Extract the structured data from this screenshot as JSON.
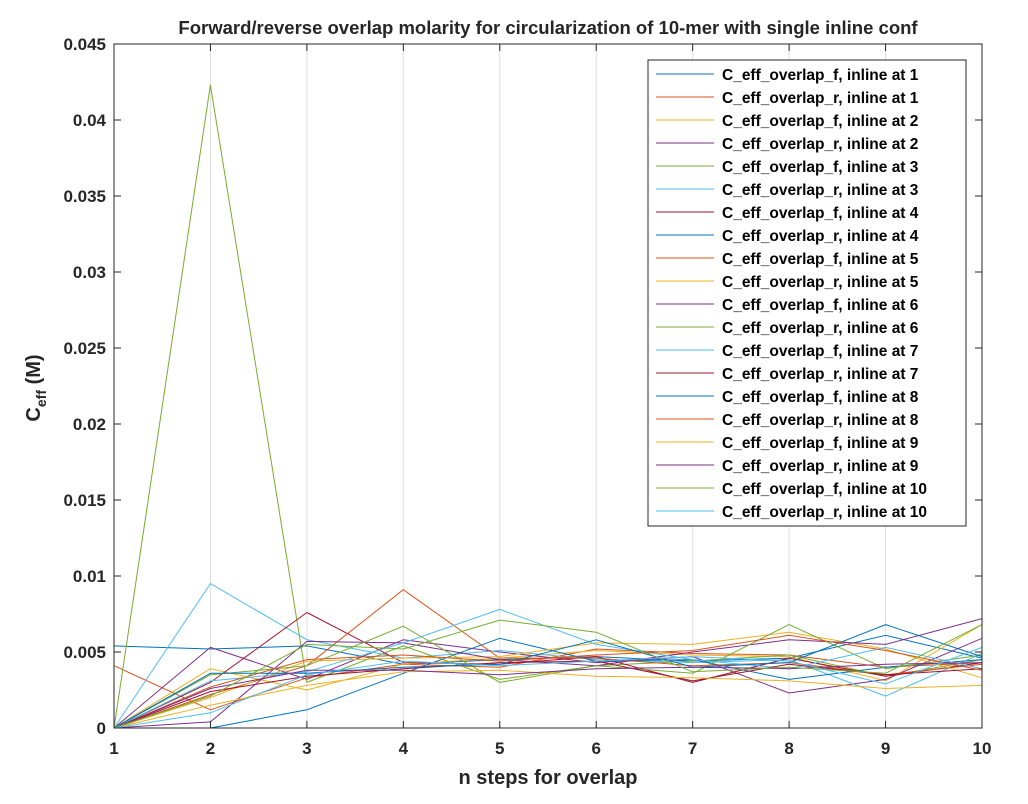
{
  "chart_data": {
    "type": "line",
    "title": "Forward/reverse overlap molarity for circularization of 10-mer with single inline conf",
    "xlabel": "n steps for overlap",
    "ylabel_main": "C",
    "ylabel_sub": "eff",
    "ylabel_unit": " (M)",
    "xlim": [
      1,
      10
    ],
    "ylim": [
      0,
      0.045
    ],
    "xticks": [
      1,
      2,
      3,
      4,
      5,
      6,
      7,
      8,
      9,
      10
    ],
    "xtick_labels": [
      "1",
      "2",
      "3",
      "4",
      "5",
      "6",
      "7",
      "8",
      "9",
      "10"
    ],
    "yticks": [
      0,
      0.005,
      0.01,
      0.015,
      0.02,
      0.025,
      0.03,
      0.035,
      0.04,
      0.045
    ],
    "ytick_labels": [
      "0",
      "0.005",
      "0.01",
      "0.015",
      "0.02",
      "0.025",
      "0.03",
      "0.035",
      "0.04",
      "0.045"
    ],
    "grid": "vertical",
    "legend_position": "top-right",
    "x": [
      1,
      2,
      3,
      4,
      5,
      6,
      7,
      8,
      9,
      10
    ],
    "series": [
      {
        "name": "C_eff_overlap_f, inline at 1",
        "color": "#0072BD",
        "values": [
          0.0054,
          0.0052,
          0.0054,
          0.0042,
          0.0045,
          0.0047,
          0.0044,
          0.0046,
          0.0061,
          0.0046
        ]
      },
      {
        "name": "C_eff_overlap_r, inline at 1",
        "color": "#D95319",
        "values": [
          0.0041,
          0.0012,
          0.0033,
          0.0042,
          0.004,
          0.0052,
          0.0049,
          0.0048,
          0.004,
          0.0043
        ]
      },
      {
        "name": "C_eff_overlap_f, inline at 2",
        "color": "#EDB120",
        "values": [
          0.0,
          0.0039,
          0.0025,
          0.0042,
          0.0046,
          0.0051,
          0.0048,
          0.0047,
          0.0031,
          0.0068
        ]
      },
      {
        "name": "C_eff_overlap_r, inline at 2",
        "color": "#7E2F8E",
        "values": [
          0.0,
          0.0053,
          0.0032,
          0.0058,
          0.005,
          0.0043,
          0.0047,
          0.0023,
          0.0032,
          0.0059
        ]
      },
      {
        "name": "C_eff_overlap_f, inline at 3",
        "color": "#77AC30",
        "values": [
          0.0,
          0.0423,
          0.003,
          0.0054,
          0.0032,
          0.0041,
          0.0044,
          0.0048,
          0.0034,
          0.0045
        ]
      },
      {
        "name": "C_eff_overlap_r, inline at 3",
        "color": "#4DBEEE",
        "values": [
          0.0,
          0.0095,
          0.0058,
          0.0046,
          0.0051,
          0.0045,
          0.0043,
          0.0045,
          0.0021,
          0.0049
        ]
      },
      {
        "name": "C_eff_overlap_f, inline at 4",
        "color": "#A2142F",
        "values": [
          0.0,
          0.003,
          0.0076,
          0.0043,
          0.0042,
          0.0047,
          0.003,
          0.0046,
          0.0034,
          0.0043
        ]
      },
      {
        "name": "C_eff_overlap_r, inline at 4",
        "color": "#0072BD",
        "values": [
          0.0,
          0.0,
          0.0012,
          0.0036,
          0.0059,
          0.0044,
          0.0045,
          0.0032,
          0.004,
          0.0045
        ]
      },
      {
        "name": "C_eff_overlap_f, inline at 5",
        "color": "#D95319",
        "values": [
          0.0,
          0.0022,
          0.0041,
          0.0091,
          0.0046,
          0.0046,
          0.0041,
          0.0043,
          0.0035,
          0.0042
        ]
      },
      {
        "name": "C_eff_overlap_r, inline at 5",
        "color": "#EDB120",
        "values": [
          0.0,
          0.002,
          0.0044,
          0.0046,
          0.0047,
          0.0056,
          0.0055,
          0.0063,
          0.0052,
          0.0033
        ]
      },
      {
        "name": "C_eff_overlap_f, inline at 6",
        "color": "#7E2F8E",
        "values": [
          0.0,
          0.0004,
          0.0057,
          0.0056,
          0.0045,
          0.0041,
          0.005,
          0.0058,
          0.0055,
          0.0072
        ]
      },
      {
        "name": "C_eff_overlap_r, inline at 6",
        "color": "#77AC30",
        "values": [
          0.0,
          0.0035,
          0.0041,
          0.0067,
          0.003,
          0.0041,
          0.0036,
          0.0068,
          0.0039,
          0.0048
        ]
      },
      {
        "name": "C_eff_overlap_f, inline at 7",
        "color": "#4DBEEE",
        "values": [
          0.0,
          0.0031,
          0.0037,
          0.0056,
          0.0078,
          0.0055,
          0.0045,
          0.0039,
          0.0053,
          0.0039
        ]
      },
      {
        "name": "C_eff_overlap_r, inline at 7",
        "color": "#A2142F",
        "values": [
          0.0,
          0.0024,
          0.0034,
          0.0039,
          0.0043,
          0.0044,
          0.0031,
          0.0042,
          0.0035,
          0.0039
        ]
      },
      {
        "name": "C_eff_overlap_f, inline at 8",
        "color": "#0072BD",
        "values": [
          0.0,
          0.0036,
          0.0036,
          0.004,
          0.0042,
          0.0058,
          0.004,
          0.0043,
          0.0068,
          0.0047
        ]
      },
      {
        "name": "C_eff_overlap_r, inline at 8",
        "color": "#D95319",
        "values": [
          0.0,
          0.0027,
          0.0045,
          0.0048,
          0.0044,
          0.0048,
          0.0051,
          0.0061,
          0.0051,
          0.0038
        ]
      },
      {
        "name": "C_eff_overlap_f, inline at 9",
        "color": "#EDB120",
        "values": [
          0.0,
          0.0015,
          0.0028,
          0.0037,
          0.0038,
          0.0034,
          0.0033,
          0.0031,
          0.0026,
          0.0028
        ]
      },
      {
        "name": "C_eff_overlap_r, inline at 9",
        "color": "#7E2F8E",
        "values": [
          0.0,
          0.0026,
          0.0038,
          0.0038,
          0.0035,
          0.0039,
          0.004,
          0.0039,
          0.0042,
          0.0043
        ]
      },
      {
        "name": "C_eff_overlap_f, inline at 10",
        "color": "#77AC30",
        "values": [
          0.0,
          0.0021,
          0.0055,
          0.0052,
          0.0071,
          0.0063,
          0.0037,
          0.004,
          0.0036,
          0.0068
        ]
      },
      {
        "name": "C_eff_overlap_r, inline at 10",
        "color": "#4DBEEE",
        "values": [
          0.0,
          0.001,
          0.0035,
          0.0044,
          0.0041,
          0.0044,
          0.0047,
          0.0044,
          0.0029,
          0.0053
        ]
      }
    ]
  }
}
